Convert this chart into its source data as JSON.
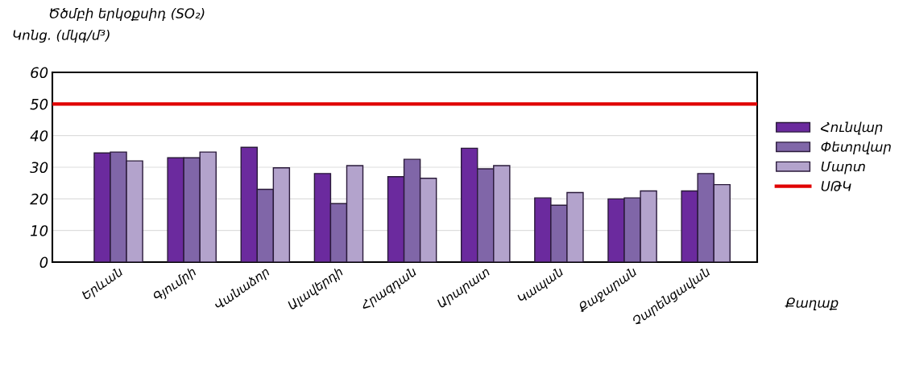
{
  "chart_data": {
    "type": "bar",
    "title": "Ծծմբի երկօքսիդ (SO₂)",
    "ylabel": "Կոնց. (մկգ/մ³)",
    "xlabel": "Քաղաք",
    "categories": [
      "Երևան",
      "Գյումրի",
      "Վանաձոր",
      "Ալավերդի",
      "Հրազդան",
      "Արարատ",
      "Կապան",
      "Քաջարան",
      "Չարենցավան"
    ],
    "series": [
      {
        "name": "Հունվար",
        "color": "#6b2a9e",
        "values": [
          34.5,
          33,
          36.3,
          28,
          27,
          36,
          20.3,
          20,
          22.5
        ]
      },
      {
        "name": "Փետրվար",
        "color": "#8066a8",
        "values": [
          34.8,
          33,
          23,
          18.5,
          32.5,
          29.5,
          18,
          20.3,
          28
        ]
      },
      {
        "name": "Մարտ",
        "color": "#b3a3cc",
        "values": [
          32,
          34.8,
          29.8,
          30.5,
          26.5,
          30.5,
          22,
          22.5,
          24.5
        ]
      }
    ],
    "ref_lines": [
      {
        "axis": "y",
        "value": 50,
        "label": "ՍԹԿ",
        "color": "#e00000"
      }
    ],
    "ylim": [
      0,
      60
    ],
    "yticks": [
      0,
      10,
      20,
      30,
      40,
      50,
      60
    ],
    "grid": "y",
    "legend": "right"
  }
}
